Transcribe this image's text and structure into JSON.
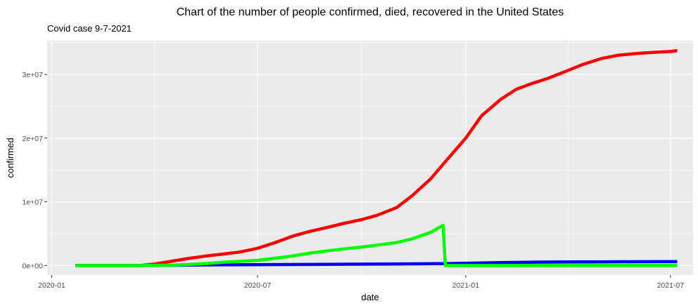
{
  "chart_data": {
    "type": "line",
    "title": "Chart of the number of people confirmed, died, recovered in the United States",
    "subtitle": "Covid case 9-7-2021",
    "xlabel": "date",
    "ylabel": "confirmed",
    "x_ticks": [
      "2020-01",
      "2020-07",
      "2021-01",
      "2021-07"
    ],
    "y_ticks": [
      "0e+00",
      "1e+07",
      "2e+07",
      "3e+07"
    ],
    "xlim": [
      "2019-12-28",
      "2021-07-21"
    ],
    "ylim": [
      -1500000,
      35300000
    ],
    "grid": true,
    "legend": "none",
    "series": [
      {
        "color": "#ff0000",
        "points": [
          [
            "2020-01-22",
            0
          ],
          [
            "2020-02-15",
            20
          ],
          [
            "2020-03-10",
            1000
          ],
          [
            "2020-03-20",
            20000
          ],
          [
            "2020-04-01",
            220000
          ],
          [
            "2020-04-15",
            640000
          ],
          [
            "2020-05-01",
            1100000
          ],
          [
            "2020-05-15",
            1450000
          ],
          [
            "2020-06-01",
            1800000
          ],
          [
            "2020-06-15",
            2100000
          ],
          [
            "2020-07-01",
            2700000
          ],
          [
            "2020-07-15",
            3500000
          ],
          [
            "2020-08-01",
            4600000
          ],
          [
            "2020-08-15",
            5300000
          ],
          [
            "2020-09-01",
            6000000
          ],
          [
            "2020-09-15",
            6600000
          ],
          [
            "2020-10-01",
            7200000
          ],
          [
            "2020-10-15",
            7900000
          ],
          [
            "2020-11-01",
            9100000
          ],
          [
            "2020-11-15",
            11000000
          ],
          [
            "2020-12-01",
            13600000
          ],
          [
            "2020-12-15",
            16500000
          ],
          [
            "2021-01-01",
            20000000
          ],
          [
            "2021-01-15",
            23500000
          ],
          [
            "2021-02-01",
            26100000
          ],
          [
            "2021-02-15",
            27700000
          ],
          [
            "2021-03-01",
            28600000
          ],
          [
            "2021-03-15",
            29400000
          ],
          [
            "2021-04-01",
            30600000
          ],
          [
            "2021-04-15",
            31600000
          ],
          [
            "2021-05-01",
            32500000
          ],
          [
            "2021-05-15",
            33000000
          ],
          [
            "2021-06-01",
            33300000
          ],
          [
            "2021-06-15",
            33450000
          ],
          [
            "2021-07-01",
            33600000
          ],
          [
            "2021-07-07",
            33750000
          ]
        ]
      },
      {
        "color": "#0000ff",
        "points": [
          [
            "2020-01-22",
            0
          ],
          [
            "2020-03-15",
            100
          ],
          [
            "2020-04-01",
            5000
          ],
          [
            "2020-04-15",
            28000
          ],
          [
            "2020-05-01",
            65000
          ],
          [
            "2020-06-01",
            105000
          ],
          [
            "2020-07-01",
            130000
          ],
          [
            "2020-08-01",
            155000
          ],
          [
            "2020-09-01",
            185000
          ],
          [
            "2020-10-01",
            207000
          ],
          [
            "2020-11-01",
            231000
          ],
          [
            "2020-12-01",
            270000
          ],
          [
            "2020-12-15",
            300000
          ],
          [
            "2021-01-01",
            350000
          ],
          [
            "2021-02-01",
            445000
          ],
          [
            "2021-03-01",
            515000
          ],
          [
            "2021-04-01",
            550000
          ],
          [
            "2021-05-01",
            575000
          ],
          [
            "2021-06-01",
            595000
          ],
          [
            "2021-07-07",
            606000
          ]
        ]
      },
      {
        "color": "#00ff00",
        "points": [
          [
            "2020-01-22",
            0
          ],
          [
            "2020-03-15",
            100
          ],
          [
            "2020-04-01",
            15000
          ],
          [
            "2020-04-15",
            40000
          ],
          [
            "2020-05-01",
            150000
          ],
          [
            "2020-05-15",
            300000
          ],
          [
            "2020-06-01",
            500000
          ],
          [
            "2020-06-15",
            650000
          ],
          [
            "2020-07-01",
            800000
          ],
          [
            "2020-07-15",
            1100000
          ],
          [
            "2020-08-01",
            1500000
          ],
          [
            "2020-08-15",
            1900000
          ],
          [
            "2020-09-01",
            2300000
          ],
          [
            "2020-09-15",
            2600000
          ],
          [
            "2020-10-01",
            2900000
          ],
          [
            "2020-10-15",
            3200000
          ],
          [
            "2020-11-01",
            3600000
          ],
          [
            "2020-11-15",
            4200000
          ],
          [
            "2020-12-01",
            5200000
          ],
          [
            "2020-12-12",
            6300000
          ],
          [
            "2020-12-14",
            0
          ],
          [
            "2021-02-01",
            0
          ],
          [
            "2021-07-07",
            0
          ]
        ]
      }
    ]
  }
}
